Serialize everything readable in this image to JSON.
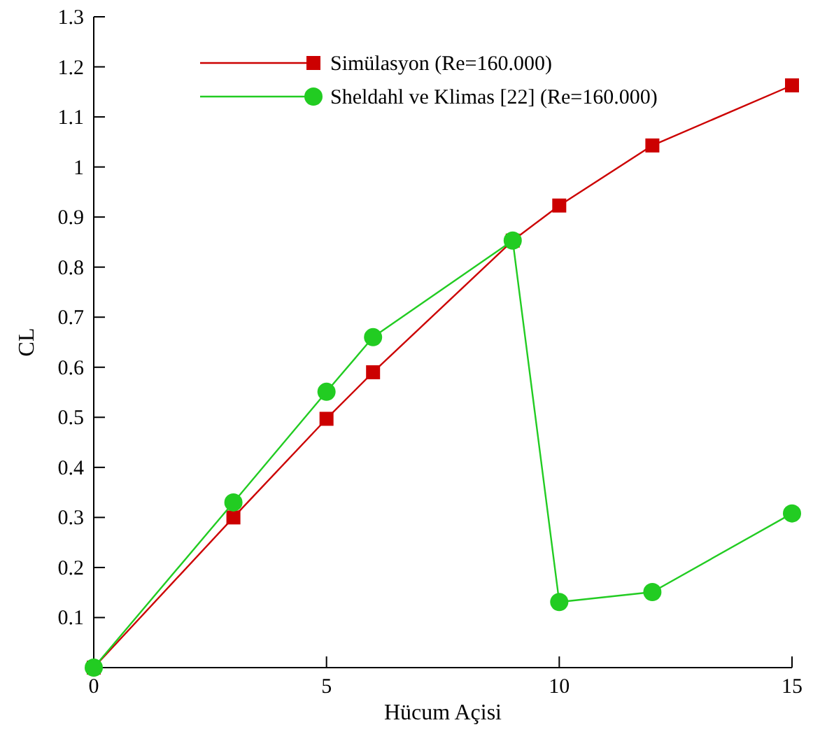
{
  "chart_data": {
    "type": "line",
    "xlabel": "Hücum Açisi",
    "ylabel": "CL",
    "x": [
      0,
      3,
      5,
      6,
      9,
      10,
      12,
      15
    ],
    "series": [
      {
        "name": "Simülasyon (Re=160.000)",
        "color": "#cc0000",
        "marker": "square",
        "values": [
          0,
          0.3,
          0.497,
          0.59,
          0.853,
          0.923,
          1.043,
          1.163
        ]
      },
      {
        "name": "Sheldahl ve Klimas [22] (Re=160.000)",
        "color": "#22cc22",
        "marker": "circle",
        "values": [
          0,
          0.33,
          0.551,
          0.66,
          0.853,
          0.131,
          0.151,
          0.308
        ]
      }
    ],
    "xlim": [
      0,
      15
    ],
    "xticks": [
      0,
      5,
      10,
      15
    ],
    "ylim": [
      0,
      1.3
    ],
    "yticks": [
      0.1,
      0.2,
      0.3,
      0.4,
      0.5,
      0.6,
      0.7,
      0.8,
      0.9,
      1,
      1.1,
      1.2,
      1.3
    ],
    "legend": "top",
    "grid": false
  }
}
